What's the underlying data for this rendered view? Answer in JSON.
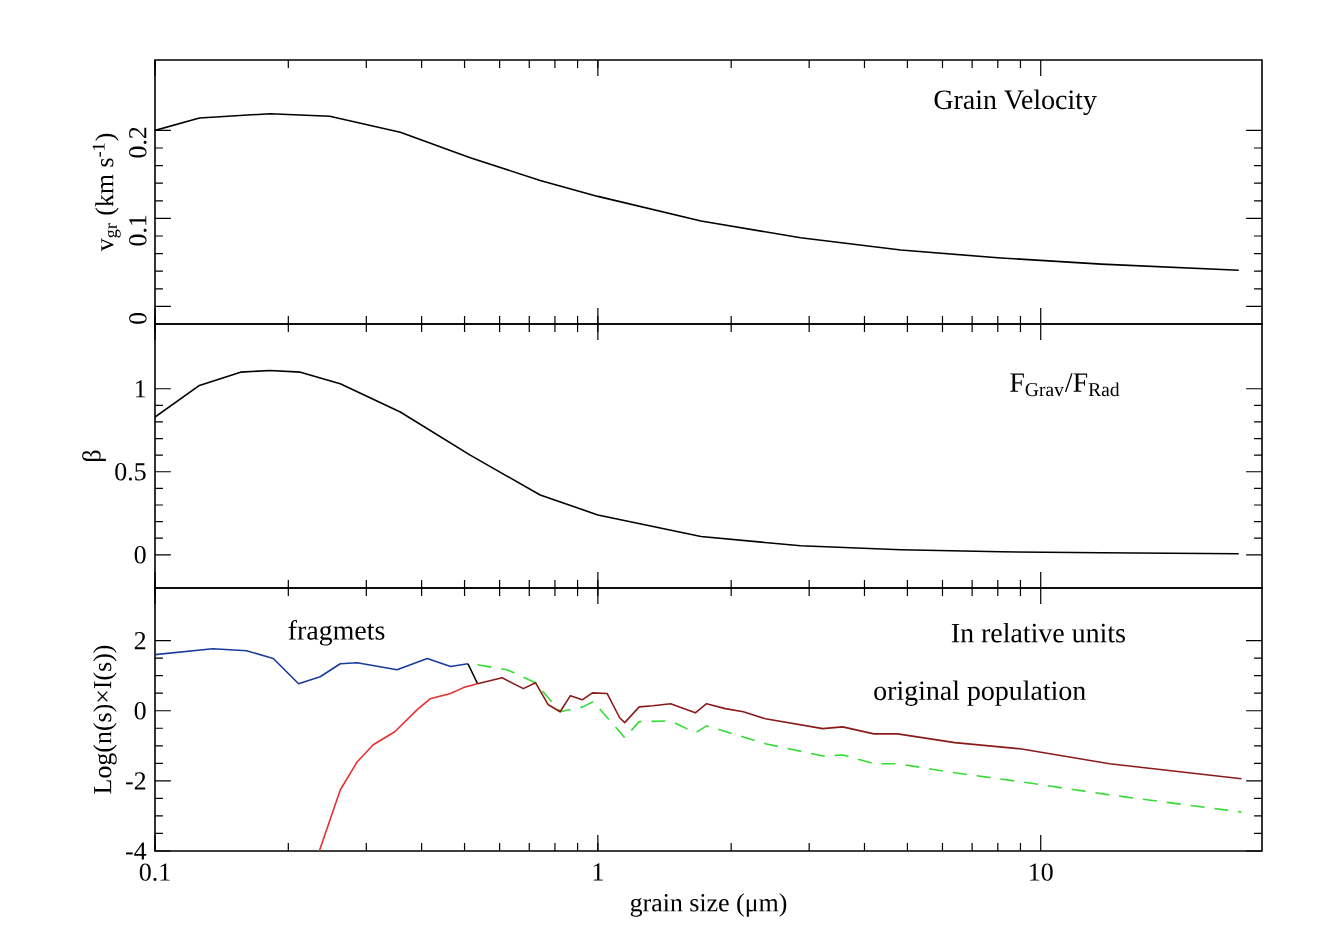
{
  "chart_data": [
    {
      "type": "line",
      "ylabel": "v$_{gr}$ (km s$^{-1}$)",
      "log": "x",
      "xlim": [
        0.1,
        31.6
      ],
      "ylim": [
        -0.02,
        0.28
      ],
      "xticks": [
        0.1,
        1,
        10
      ],
      "yticks": [
        0,
        0.1,
        0.2
      ],
      "tick_labels": "y",
      "annotations": [
        "Grain Velocity"
      ],
      "series": [
        {
          "color": "#000000",
          "x": [
            0.1,
            0.126,
            0.182,
            0.248,
            0.358,
            0.515,
            0.741,
            1,
            1.71,
            2.87,
            4.83,
            8.13,
            13.7,
            28
          ],
          "values": [
            0.2,
            0.214,
            0.219,
            0.216,
            0.198,
            0.169,
            0.143,
            0.125,
            0.097,
            0.078,
            0.064,
            0.055,
            0.048,
            0.041
          ]
        }
      ]
    },
    {
      "type": "line",
      "ylabel": "β",
      "log": "x",
      "xlim": [
        0.1,
        31.6
      ],
      "ylim": [
        -0.2,
        1.39
      ],
      "xticks": [
        0.1,
        1,
        10
      ],
      "yticks": [
        0,
        0.5,
        1
      ],
      "tick_labels": "y",
      "annotations": [
        "F$_{Grav}$/F$_{Rad}$"
      ],
      "series": [
        {
          "color": "#000000",
          "x": [
            0.1,
            0.126,
            0.156,
            0.182,
            0.213,
            0.262,
            0.358,
            0.515,
            0.741,
            1,
            1.71,
            2.87,
            4.83,
            8.13,
            13.7,
            28
          ],
          "values": [
            0.83,
            1.02,
            1.1,
            1.11,
            1.1,
            1.03,
            0.86,
            0.6,
            0.36,
            0.24,
            0.11,
            0.054,
            0.03,
            0.018,
            0.012,
            0.006
          ]
        }
      ]
    },
    {
      "type": "line",
      "xlabel": "grain size (μm)",
      "ylabel": "Log(n(s)×I(s))",
      "log": "x",
      "xlim": [
        0.1,
        31.6
      ],
      "ylim": [
        -4,
        3.5
      ],
      "xticks": [
        0.1,
        1,
        10
      ],
      "yticks": [
        -4,
        -2,
        0,
        2
      ],
      "annotations": [
        "fragmets",
        "In relative units",
        "original population"
      ],
      "series": [
        {
          "color": "#1a3c9c",
          "x": [
            0.1,
            0.135,
            0.161,
            0.185,
            0.211,
            0.236,
            0.262,
            0.286,
            0.352,
            0.412,
            0.465,
            0.509
          ],
          "values": [
            1.6,
            1.77,
            1.71,
            1.49,
            0.77,
            0.97,
            1.34,
            1.37,
            1.17,
            1.49,
            1.26,
            1.34
          ]
        },
        {
          "color": "#000000",
          "x": [
            0.509,
            0.535
          ],
          "values": [
            1.34,
            0.77
          ]
        },
        {
          "color": "#e83030",
          "x": [
            0.235,
            0.262,
            0.286,
            0.311,
            0.348,
            0.391,
            0.418,
            0.465,
            0.497,
            0.535
          ],
          "values": [
            -4,
            -2.26,
            -1.46,
            -0.97,
            -0.6,
            0.03,
            0.34,
            0.49,
            0.66,
            0.77
          ]
        },
        {
          "color": "#33dd33",
          "line_style": "dashed",
          "x": [
            0.535,
            0.624,
            0.723,
            0.822,
            0.925,
            0.976,
            1.12,
            1.15,
            1.24,
            1.46,
            1.66,
            1.76,
            2.39,
            3.22,
            3.57,
            4.2,
            4.75,
            6.4,
            9.06,
            14.3,
            28.4
          ],
          "values": [
            1.31,
            1.17,
            0.8,
            -0.03,
            0.11,
            0.26,
            -0.6,
            -0.77,
            -0.31,
            -0.29,
            -0.63,
            -0.43,
            -0.94,
            -1.29,
            -1.26,
            -1.51,
            -1.51,
            -1.77,
            -2.03,
            -2.4,
            -2.89
          ]
        },
        {
          "color": "#8b1a1a",
          "x": [
            0.535,
            0.608,
            0.679,
            0.723,
            0.773,
            0.822,
            0.867,
            0.922,
            0.972,
            1.05,
            1.12,
            1.15,
            1.24,
            1.33,
            1.46,
            1.66,
            1.76,
            1.94,
            2.13,
            2.39,
            3.22,
            3.57,
            4.2,
            4.75,
            6.4,
            9.06,
            14.3,
            28.4
          ],
          "values": [
            0.77,
            0.94,
            0.63,
            0.8,
            0.17,
            -0.03,
            0.43,
            0.31,
            0.51,
            0.49,
            -0.2,
            -0.34,
            0.11,
            0.14,
            0.2,
            -0.06,
            0.2,
            0.06,
            -0.03,
            -0.23,
            -0.51,
            -0.46,
            -0.66,
            -0.66,
            -0.91,
            -1.09,
            -1.51,
            -1.94
          ]
        }
      ]
    }
  ]
}
